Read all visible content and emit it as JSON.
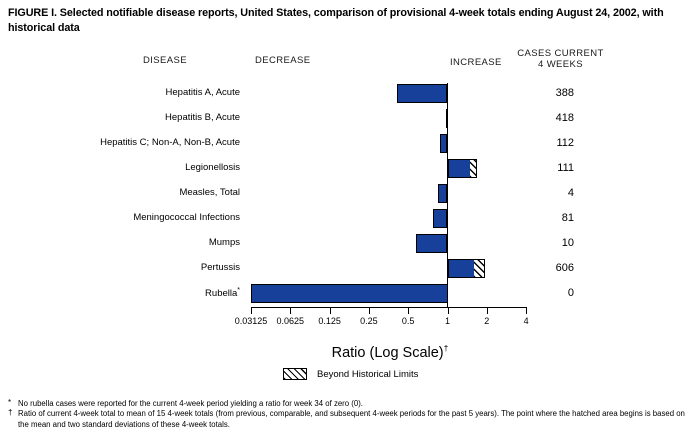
{
  "title": "FIGURE I. Selected notifiable disease reports, United States, comparison of provisional 4-week totals ending August 24, 2002, with historical data",
  "headers": {
    "disease": "DISEASE",
    "decrease": "DECREASE",
    "increase": "INCREASE",
    "cases_line1": "CASES CURRENT",
    "cases_line2": "4 WEEKS"
  },
  "chart_data": {
    "type": "bar",
    "orientation": "horizontal",
    "scale": "log2",
    "title": "Selected notifiable disease reports, ratio of current 4-week total to historical mean",
    "axis": {
      "label": "Ratio (Log Scale)",
      "label_superscript": "†",
      "min": 0.03125,
      "max": 4,
      "baseline": 1,
      "ticks": [
        0.03125,
        0.0625,
        0.125,
        0.25,
        0.5,
        1,
        2,
        4
      ],
      "tick_labels": [
        "0.03125",
        "0.0625",
        "0.125",
        "0.25",
        "0.5",
        "1",
        "2",
        "4"
      ]
    },
    "rows": [
      {
        "disease": "Hepatitis A, Acute",
        "ratio": 0.41,
        "cases": "388",
        "beyond_limits": false
      },
      {
        "disease": "Hepatitis B, Acute",
        "ratio": 0.97,
        "cases": "418",
        "beyond_limits": false
      },
      {
        "disease": "Hepatitis C; Non-A, Non-B, Acute",
        "ratio": 0.88,
        "cases": "112",
        "beyond_limits": false
      },
      {
        "disease": "Legionellosis",
        "ratio": 1.68,
        "cases": "111",
        "beyond_limits": true,
        "limit_start": 1.51
      },
      {
        "disease": "Measles, Total",
        "ratio": 0.84,
        "cases": "4",
        "beyond_limits": false
      },
      {
        "disease": "Meningococcal Infections",
        "ratio": 0.78,
        "cases": "81",
        "beyond_limits": false
      },
      {
        "disease": "Mumps",
        "ratio": 0.57,
        "cases": "10",
        "beyond_limits": false
      },
      {
        "disease": "Pertussis",
        "ratio": 1.94,
        "cases": "606",
        "beyond_limits": true,
        "limit_start": 1.61
      },
      {
        "disease": "Rubella",
        "superscript": "*",
        "ratio": 0,
        "cases": "0",
        "beyond_limits": false
      }
    ],
    "legend": {
      "label": "Beyond Historical Limits",
      "swatch": "hatched"
    },
    "colors": {
      "bar": "#16409a",
      "bar_border": "#000000"
    }
  },
  "footnotes": [
    {
      "marker": "*",
      "text": "No rubella cases were reported for the current 4-week period yielding a ratio for week 34 of zero (0)."
    },
    {
      "marker": "†",
      "text": "Ratio of current 4-week total to mean of 15 4-week totals (from previous, comparable, and subsequent 4-week periods for the past 5 years). The point where the hatched area begins is based on the mean and two standard deviations of these 4-week totals."
    }
  ]
}
